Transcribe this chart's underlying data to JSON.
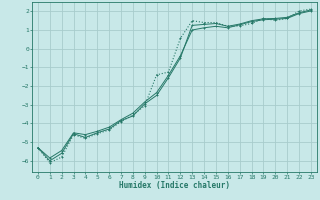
{
  "xlabel": "Humidex (Indice chaleur)",
  "bg_color": "#c8e8e8",
  "grid_color": "#a8cccc",
  "line_color": "#267868",
  "xlim": [
    -0.5,
    23.5
  ],
  "ylim": [
    -6.6,
    2.5
  ],
  "xticks": [
    0,
    1,
    2,
    3,
    4,
    5,
    6,
    7,
    8,
    9,
    10,
    11,
    12,
    13,
    14,
    15,
    16,
    17,
    18,
    19,
    20,
    21,
    22,
    23
  ],
  "yticks": [
    -6,
    -5,
    -4,
    -3,
    -2,
    -1,
    0,
    1,
    2
  ],
  "line1_x": [
    0,
    1,
    2,
    3,
    4,
    5,
    6,
    7,
    8,
    9,
    10,
    11,
    12,
    13,
    14,
    15,
    16,
    17,
    18,
    19,
    20,
    21,
    22,
    23
  ],
  "line1_y": [
    -5.3,
    -6.1,
    -5.8,
    -4.6,
    -4.8,
    -4.55,
    -4.35,
    -3.9,
    -3.55,
    -3.05,
    -1.4,
    -1.25,
    0.55,
    1.5,
    1.4,
    1.4,
    1.2,
    1.22,
    1.35,
    1.62,
    1.52,
    1.62,
    2.02,
    2.12
  ],
  "line2_x": [
    0,
    1,
    2,
    3,
    4,
    5,
    6,
    7,
    8,
    9,
    10,
    11,
    12,
    13,
    14,
    15,
    16,
    17,
    18,
    19,
    20,
    21,
    22,
    23
  ],
  "line2_y": [
    -5.3,
    -6.0,
    -5.6,
    -4.55,
    -4.75,
    -4.5,
    -4.3,
    -3.85,
    -3.6,
    -2.95,
    -2.5,
    -1.55,
    -0.5,
    1.25,
    1.3,
    1.35,
    1.2,
    1.32,
    1.5,
    1.6,
    1.62,
    1.68,
    1.92,
    2.08
  ],
  "line3_x": [
    0,
    1,
    2,
    3,
    4,
    5,
    6,
    7,
    8,
    9,
    10,
    11,
    12,
    13,
    14,
    15,
    16,
    17,
    18,
    19,
    20,
    21,
    22,
    23
  ],
  "line3_y": [
    -5.3,
    -5.85,
    -5.45,
    -4.5,
    -4.6,
    -4.42,
    -4.2,
    -3.8,
    -3.45,
    -2.85,
    -2.35,
    -1.42,
    -0.38,
    1.0,
    1.12,
    1.2,
    1.12,
    1.28,
    1.45,
    1.55,
    1.58,
    1.62,
    1.88,
    2.02
  ]
}
